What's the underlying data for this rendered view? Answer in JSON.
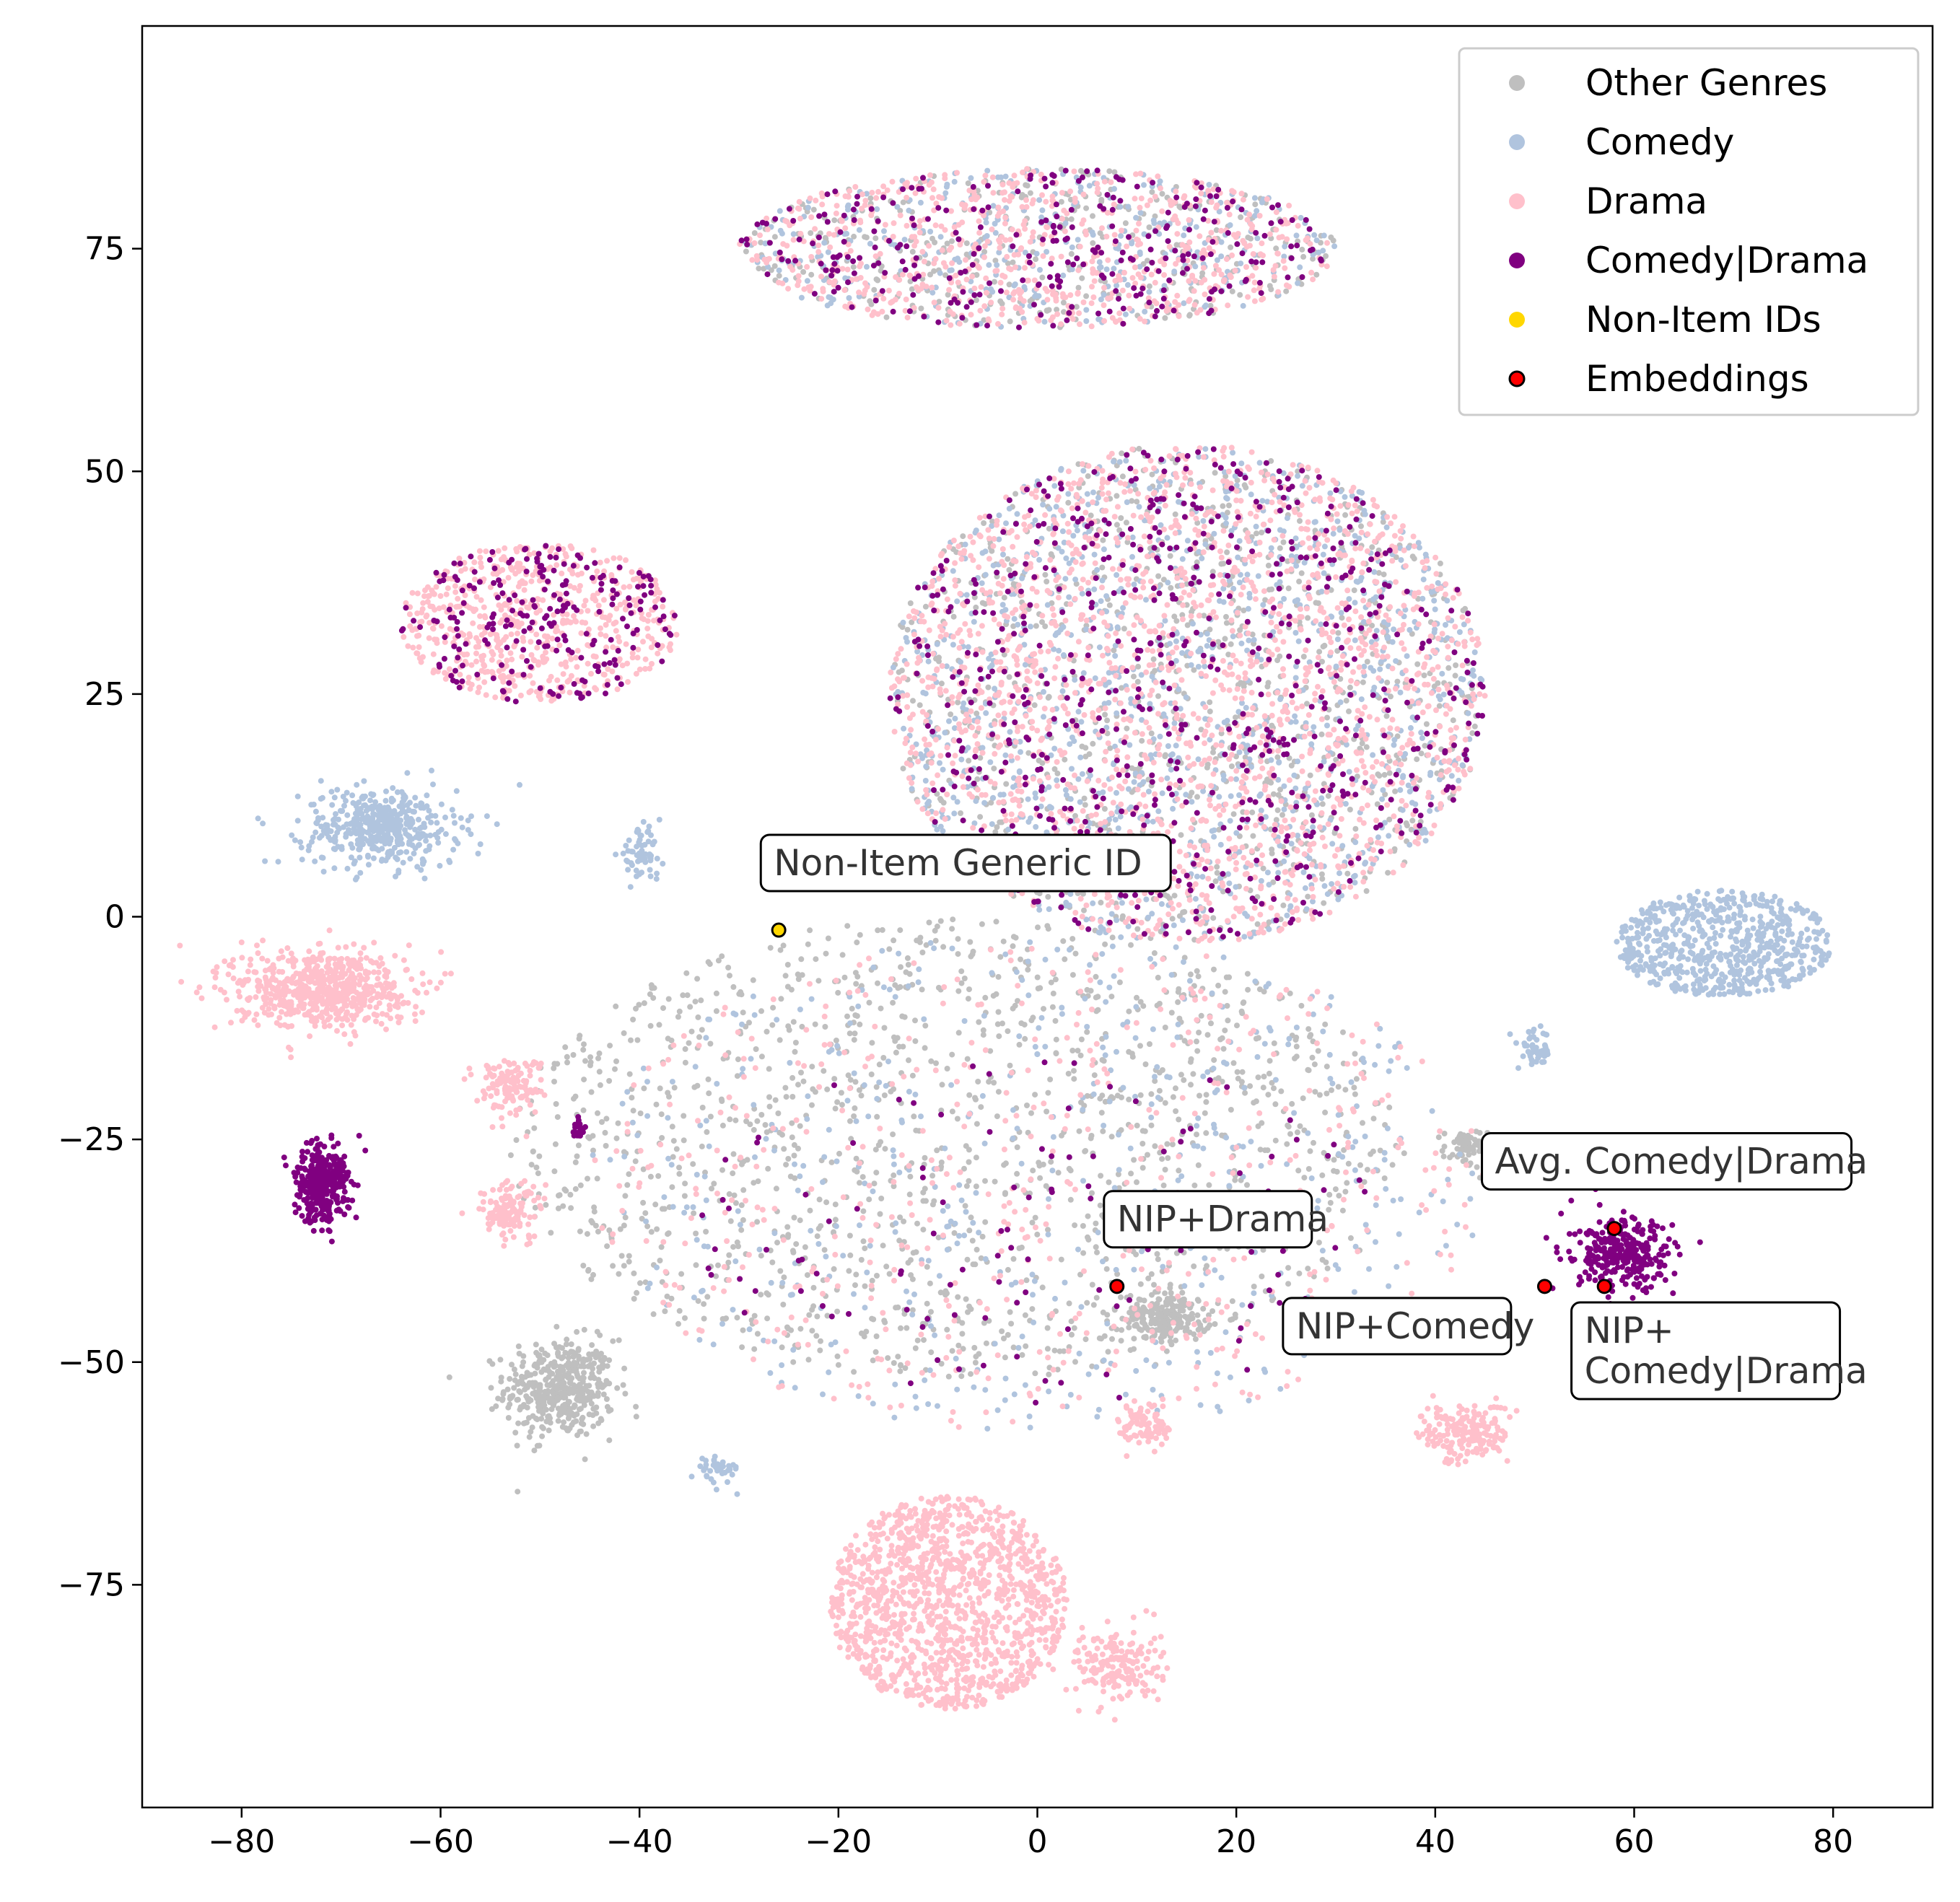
{
  "chart_data": {
    "type": "scatter",
    "title": "",
    "xlabel": "",
    "ylabel": "",
    "xlim": [
      -90,
      90
    ],
    "ylim": [
      -100,
      100
    ],
    "grid": false,
    "legend_position": "top-right",
    "xticks": [
      -80,
      -60,
      -40,
      -20,
      0,
      20,
      40,
      60,
      80
    ],
    "xtick_labels": [
      "−80",
      "−60",
      "−40",
      "−20",
      "0",
      "20",
      "40",
      "60",
      "80"
    ],
    "yticks": [
      75,
      50,
      25,
      0,
      -25,
      -50,
      -75
    ],
    "ytick_labels": [
      "75",
      "50",
      "25",
      "0",
      "−25",
      "−50",
      "−75"
    ],
    "series": [
      {
        "name": "Other Genres",
        "color": "#bfbfbf"
      },
      {
        "name": "Comedy",
        "color": "#b0c4de"
      },
      {
        "name": "Drama",
        "color": "#ffc0cb"
      },
      {
        "name": "Comedy|Drama",
        "color": "#800080"
      },
      {
        "name": "Non-Item IDs",
        "color": "#ffd700"
      },
      {
        "name": "Embeddings",
        "color": "#ff0000",
        "edge": "#000000"
      }
    ],
    "clusters": [
      {
        "series": "Other Genres",
        "cx": -48,
        "cy": -53,
        "rx": 5,
        "ry": 5,
        "n": 450
      },
      {
        "series": "Other Genres",
        "cx": 13,
        "cy": -45,
        "rx": 4,
        "ry": 2.5,
        "n": 200
      },
      {
        "series": "Other Genres",
        "cx": 43,
        "cy": -26,
        "rx": 2,
        "ry": 2,
        "n": 60
      },
      {
        "series": "Other Genres",
        "cx": -8,
        "cy": -26,
        "rx": 45,
        "ry": 26,
        "n": 1400
      },
      {
        "series": "Other Genres",
        "cx": 15,
        "cy": 25,
        "rx": 30,
        "ry": 28,
        "n": 900
      },
      {
        "series": "Other Genres",
        "cx": 0,
        "cy": 75,
        "rx": 30,
        "ry": 9,
        "n": 350
      },
      {
        "series": "Comedy",
        "cx": -66,
        "cy": 10,
        "rx": 7,
        "ry": 4,
        "n": 450
      },
      {
        "series": "Comedy",
        "cx": 69,
        "cy": -3,
        "rx": 11,
        "ry": 6,
        "n": 650
      },
      {
        "series": "Comedy",
        "cx": -40,
        "cy": 7,
        "rx": 2,
        "ry": 2.5,
        "n": 60
      },
      {
        "series": "Comedy",
        "cx": -32,
        "cy": -62,
        "rx": 2,
        "ry": 1.5,
        "n": 40
      },
      {
        "series": "Comedy",
        "cx": 50,
        "cy": -15,
        "rx": 1.5,
        "ry": 2,
        "n": 50
      },
      {
        "series": "Comedy",
        "cx": 0,
        "cy": -30,
        "rx": 45,
        "ry": 28,
        "n": 500
      },
      {
        "series": "Comedy",
        "cx": 15,
        "cy": 25,
        "rx": 30,
        "ry": 28,
        "n": 1200
      },
      {
        "series": "Comedy",
        "cx": 0,
        "cy": 75,
        "rx": 30,
        "ry": 9,
        "n": 350
      },
      {
        "series": "Drama",
        "cx": -9,
        "cy": -77,
        "rx": 12,
        "ry": 12,
        "n": 1300
      },
      {
        "series": "Drama",
        "cx": 8,
        "cy": -84,
        "rx": 4,
        "ry": 4,
        "n": 180
      },
      {
        "series": "Drama",
        "cx": -72,
        "cy": -8,
        "rx": 8,
        "ry": 4,
        "n": 650
      },
      {
        "series": "Drama",
        "cx": -53,
        "cy": -19,
        "rx": 3,
        "ry": 3,
        "n": 130
      },
      {
        "series": "Drama",
        "cx": -53,
        "cy": -33,
        "rx": 3,
        "ry": 3,
        "n": 130
      },
      {
        "series": "Drama",
        "cx": 43,
        "cy": -58,
        "rx": 4,
        "ry": 3,
        "n": 180
      },
      {
        "series": "Drama",
        "cx": 11,
        "cy": -57,
        "rx": 2.5,
        "ry": 2.5,
        "n": 90
      },
      {
        "series": "Drama",
        "cx": 0,
        "cy": -30,
        "rx": 45,
        "ry": 28,
        "n": 500
      },
      {
        "series": "Drama",
        "cx": -50,
        "cy": 33,
        "rx": 14,
        "ry": 9,
        "n": 600
      },
      {
        "series": "Drama",
        "cx": 15,
        "cy": 25,
        "rx": 30,
        "ry": 28,
        "n": 1800
      },
      {
        "series": "Drama",
        "cx": 0,
        "cy": 75,
        "rx": 30,
        "ry": 9,
        "n": 700
      },
      {
        "series": "Comedy|Drama",
        "cx": -72,
        "cy": -30,
        "rx": 2.5,
        "ry": 4,
        "n": 350
      },
      {
        "series": "Comedy|Drama",
        "cx": 59,
        "cy": -38,
        "rx": 4.5,
        "ry": 3.5,
        "n": 320
      },
      {
        "series": "Comedy|Drama",
        "cx": -46,
        "cy": -24,
        "rx": 0.7,
        "ry": 1,
        "n": 20
      },
      {
        "series": "Comedy|Drama",
        "cx": -50,
        "cy": 33,
        "rx": 14,
        "ry": 9,
        "n": 220
      },
      {
        "series": "Comedy|Drama",
        "cx": 15,
        "cy": 25,
        "rx": 30,
        "ry": 28,
        "n": 650
      },
      {
        "series": "Comedy|Drama",
        "cx": 0,
        "cy": 75,
        "rx": 30,
        "ry": 9,
        "n": 280
      },
      {
        "series": "Comedy|Drama",
        "cx": 0,
        "cy": -35,
        "rx": 35,
        "ry": 20,
        "n": 120
      }
    ],
    "highlighted_points": [
      {
        "label": "Non-Item Generic ID",
        "series": "Non-Item IDs",
        "x": -26,
        "y": -1.5,
        "label_x": -26.5,
        "label_y": 4.5
      },
      {
        "label": "NIP+Drama",
        "series": "Embeddings",
        "x": 8,
        "y": -41.5,
        "label_x": 8,
        "label_y": -35.5
      },
      {
        "label": "Avg. Comedy|Drama",
        "series": "Embeddings",
        "x": 58,
        "y": -35,
        "label_x": 46,
        "label_y": -29
      },
      {
        "label": "NIP+Comedy",
        "series": "Embeddings",
        "x": 51,
        "y": -41.5,
        "label_x": 26,
        "label_y": -47.5
      },
      {
        "label_lines": [
          "NIP+",
          "Comedy|Drama"
        ],
        "series": "Embeddings",
        "x": 57,
        "y": -41.5,
        "label_x": 55,
        "label_y": -48
      }
    ]
  }
}
